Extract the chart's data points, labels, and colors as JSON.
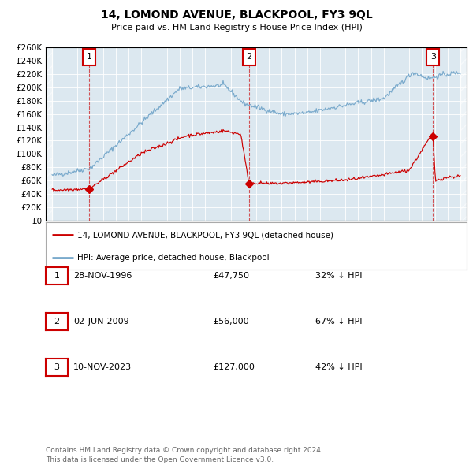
{
  "title": "14, LOMOND AVENUE, BLACKPOOL, FY3 9QL",
  "subtitle": "Price paid vs. HM Land Registry's House Price Index (HPI)",
  "sale_dates": [
    1996.91,
    2009.42,
    2023.86
  ],
  "sale_prices": [
    47750,
    56000,
    127000
  ],
  "sale_labels": [
    "1",
    "2",
    "3"
  ],
  "table_rows": [
    {
      "num": "1",
      "date": "28-NOV-1996",
      "price": "£47,750",
      "hpi": "32% ↓ HPI"
    },
    {
      "num": "2",
      "date": "02-JUN-2009",
      "price": "£56,000",
      "hpi": "67% ↓ HPI"
    },
    {
      "num": "3",
      "date": "10-NOV-2023",
      "price": "£127,000",
      "hpi": "42% ↓ HPI"
    }
  ],
  "legend_line1": "14, LOMOND AVENUE, BLACKPOOL, FY3 9QL (detached house)",
  "legend_line2": "HPI: Average price, detached house, Blackpool",
  "footnote1": "Contains HM Land Registry data © Crown copyright and database right 2024.",
  "footnote2": "This data is licensed under the Open Government Licence v3.0.",
  "sale_color": "#cc0000",
  "hpi_color": "#7aaacc",
  "background_plot": "#dce8f0",
  "background_fig": "#ffffff",
  "grid_color": "#ffffff",
  "ylim": [
    0,
    260000
  ],
  "xlim": [
    1993.5,
    2026.5
  ],
  "ytick_step": 20000
}
